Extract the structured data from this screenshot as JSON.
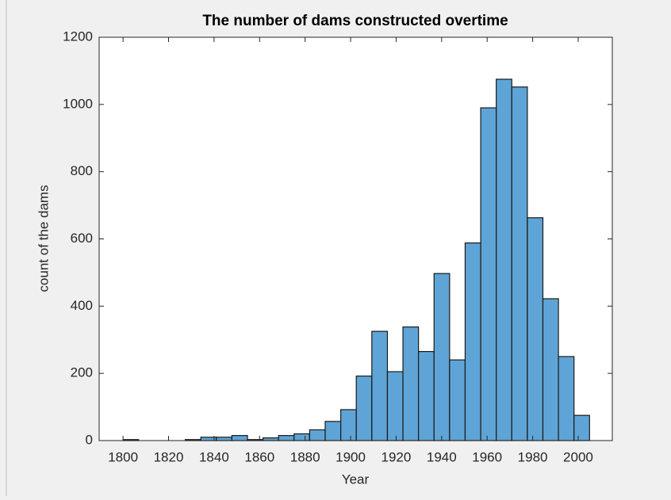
{
  "chart_data": {
    "type": "histogram",
    "title": "The number of dams constructed overtime",
    "xlabel": "Year",
    "ylabel": "count of the dams",
    "color": "#5fa4d6",
    "bins": [
      1800,
      1806.83,
      1813.67,
      1820.5,
      1827.33,
      1834.17,
      1841,
      1847.83,
      1854.67,
      1861.5,
      1868.33,
      1875.17,
      1882,
      1888.83,
      1895.67,
      1902.5,
      1909.33,
      1916.17,
      1923,
      1929.83,
      1936.67,
      1943.5,
      1950.33,
      1957.17,
      1964,
      1970.83,
      1977.67,
      1984.5,
      1991.33,
      1998.17,
      2005
    ],
    "values": [
      3,
      0,
      0,
      0,
      3,
      10,
      10,
      15,
      3,
      8,
      15,
      20,
      32,
      57,
      92,
      192,
      325,
      205,
      338,
      265,
      497,
      240,
      588,
      990,
      1075,
      1052,
      663,
      422,
      250,
      75
    ],
    "xlim": [
      1789.5,
      2015
    ],
    "ylim": [
      0,
      1200
    ],
    "xticks": [
      1800,
      1820,
      1840,
      1860,
      1880,
      1900,
      1920,
      1940,
      1960,
      1980,
      2000
    ],
    "yticks": [
      0,
      200,
      400,
      600,
      800,
      1000,
      1200
    ]
  }
}
